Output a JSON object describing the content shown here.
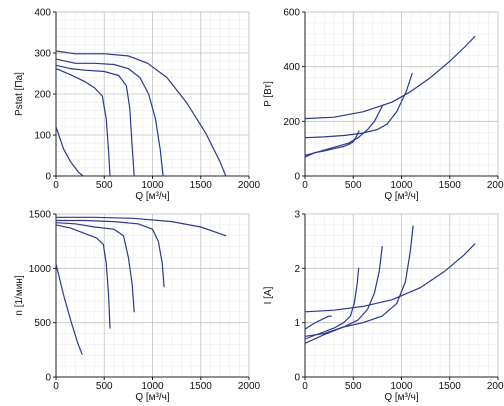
{
  "chart_data": [
    {
      "type": "line",
      "xlabel": "Q [м³/ч]",
      "ylabel": "Pstat [Па]",
      "xlim": [
        0,
        2000
      ],
      "ylim": [
        0,
        400
      ],
      "xticks": [
        "0",
        "500",
        "1000",
        "1500",
        "2000"
      ],
      "yticks": [
        "0",
        "100",
        "200",
        "300",
        "400"
      ],
      "grid": true,
      "series": [
        {
          "x": [
            0,
            80,
            150,
            230,
            280
          ],
          "y": [
            120,
            65,
            35,
            10,
            0
          ]
        },
        {
          "x": [
            0,
            150,
            300,
            400,
            480,
            520,
            545,
            560
          ],
          "y": [
            262,
            247,
            230,
            215,
            195,
            140,
            60,
            0
          ]
        },
        {
          "x": [
            0,
            150,
            300,
            500,
            650,
            730,
            765,
            790,
            810
          ],
          "y": [
            270,
            262,
            258,
            255,
            245,
            220,
            165,
            70,
            0
          ]
        },
        {
          "x": [
            0,
            200,
            400,
            600,
            750,
            870,
            960,
            1030,
            1080,
            1110
          ],
          "y": [
            285,
            275,
            275,
            272,
            262,
            240,
            200,
            140,
            65,
            0
          ]
        },
        {
          "x": [
            0,
            200,
            500,
            750,
            950,
            1150,
            1350,
            1550,
            1700,
            1760
          ],
          "y": [
            305,
            298,
            298,
            293,
            275,
            240,
            180,
            105,
            35,
            0
          ]
        }
      ]
    },
    {
      "type": "line",
      "xlabel": "Q [м³/ч]",
      "ylabel": "P [Вт]",
      "xlim": [
        0,
        2000
      ],
      "ylim": [
        0,
        600
      ],
      "xticks": [
        "0",
        "500",
        "1000",
        "1500",
        "2000"
      ],
      "yticks": [
        "0",
        "200",
        "400",
        "600"
      ],
      "grid": true,
      "series": [
        {
          "x": [
            0,
            100,
            200,
            300,
            400,
            450,
            500,
            540,
            560
          ],
          "y": [
            70,
            85,
            92,
            100,
            108,
            115,
            125,
            150,
            165
          ]
        },
        {
          "x": [
            0,
            150,
            300,
            450,
            550,
            650,
            720,
            770,
            800
          ],
          "y": [
            75,
            90,
            105,
            120,
            140,
            170,
            200,
            235,
            255
          ]
        },
        {
          "x": [
            0,
            200,
            400,
            600,
            750,
            850,
            950,
            1050,
            1110
          ],
          "y": [
            140,
            143,
            148,
            157,
            170,
            190,
            235,
            310,
            375
          ]
        },
        {
          "x": [
            0,
            300,
            600,
            900,
            1100,
            1300,
            1500,
            1650,
            1760
          ],
          "y": [
            210,
            215,
            235,
            270,
            310,
            360,
            420,
            470,
            510
          ]
        }
      ]
    },
    {
      "type": "line",
      "xlabel": "Q [м³/ч]",
      "ylabel": "n [1/мин]",
      "xlim": [
        0,
        2000
      ],
      "ylim": [
        0,
        1500
      ],
      "xticks": [
        "0",
        "500",
        "1000",
        "1500",
        "2000"
      ],
      "yticks": [
        "0",
        "500",
        "1000",
        "1500"
      ],
      "grid": true,
      "series": [
        {
          "x": [
            0,
            80,
            160,
            230,
            270
          ],
          "y": [
            1040,
            750,
            500,
            300,
            210
          ]
        },
        {
          "x": [
            0,
            150,
            300,
            420,
            490,
            520,
            545,
            560
          ],
          "y": [
            1400,
            1370,
            1320,
            1280,
            1220,
            1050,
            750,
            450
          ]
        },
        {
          "x": [
            0,
            200,
            400,
            600,
            700,
            750,
            790,
            810
          ],
          "y": [
            1420,
            1410,
            1380,
            1360,
            1300,
            1100,
            850,
            600
          ]
        },
        {
          "x": [
            0,
            300,
            600,
            850,
            1000,
            1060,
            1100,
            1120
          ],
          "y": [
            1440,
            1440,
            1430,
            1410,
            1360,
            1250,
            1050,
            830
          ]
        },
        {
          "x": [
            0,
            400,
            800,
            1200,
            1500,
            1760
          ],
          "y": [
            1470,
            1470,
            1460,
            1430,
            1380,
            1300
          ]
        }
      ]
    },
    {
      "type": "line",
      "xlabel": "Q [м³/ч]",
      "ylabel": "I [A]",
      "xlim": [
        0,
        2000
      ],
      "ylim": [
        0,
        3
      ],
      "xticks": [
        "0",
        "500",
        "1000",
        "1500",
        "2000"
      ],
      "yticks": [
        "0",
        "1",
        "2",
        "3"
      ],
      "grid": true,
      "series": [
        {
          "x": [
            0,
            60,
            130,
            200,
            250,
            270
          ],
          "y": [
            0.88,
            0.95,
            1.02,
            1.08,
            1.12,
            1.12
          ]
        },
        {
          "x": [
            0,
            150,
            300,
            400,
            470,
            510,
            540,
            555
          ],
          "y": [
            0.7,
            0.8,
            0.9,
            1.0,
            1.12,
            1.35,
            1.7,
            2.0
          ]
        },
        {
          "x": [
            0,
            200,
            400,
            550,
            650,
            720,
            770,
            800
          ],
          "y": [
            0.62,
            0.78,
            0.92,
            1.05,
            1.25,
            1.55,
            1.95,
            2.4
          ]
        },
        {
          "x": [
            0,
            200,
            400,
            600,
            800,
            950,
            1040,
            1090,
            1120
          ],
          "y": [
            0.75,
            0.8,
            0.92,
            1.0,
            1.12,
            1.35,
            1.75,
            2.3,
            2.78
          ]
        },
        {
          "x": [
            0,
            300,
            600,
            900,
            1200,
            1450,
            1650,
            1760
          ],
          "y": [
            1.2,
            1.23,
            1.3,
            1.42,
            1.65,
            1.95,
            2.25,
            2.45
          ]
        }
      ]
    }
  ],
  "colors": {
    "line": "#2b3a8c",
    "grid_major": "#c4c4c4",
    "grid_minor": "#ececec",
    "axis": "#222222"
  }
}
